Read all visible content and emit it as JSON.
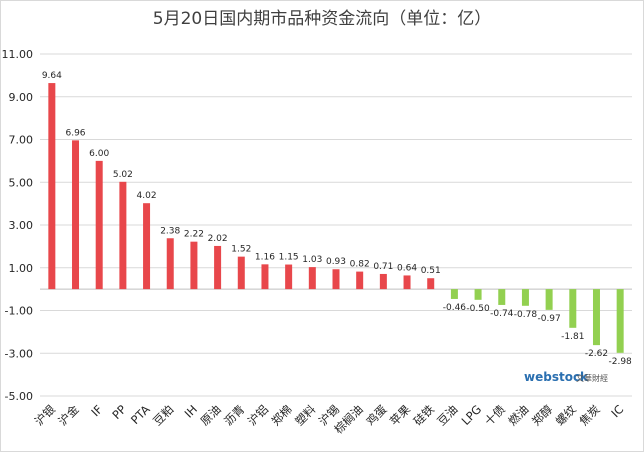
{
  "chart_data": {
    "type": "bar",
    "title": "5月20日国内期市品种资金流向（单位：亿）",
    "categories": [
      "沪银",
      "沪金",
      "IF",
      "PP",
      "PTA",
      "豆粕",
      "IH",
      "原油",
      "沥青",
      "沪铝",
      "郑棉",
      "塑料",
      "沪锡",
      "棕榈油",
      "鸡蛋",
      "苹果",
      "硅铁",
      "豆油",
      "LPG",
      "十债",
      "燃油",
      "郑醇",
      "螺纹",
      "焦炭",
      "IC"
    ],
    "values": [
      9.64,
      6.96,
      6.0,
      5.02,
      4.02,
      2.38,
      2.22,
      2.02,
      1.52,
      1.16,
      1.15,
      1.03,
      0.93,
      0.82,
      0.71,
      0.64,
      0.51,
      -0.46,
      -0.5,
      -0.74,
      -0.78,
      -0.97,
      -1.81,
      -2.62,
      -2.98
    ],
    "data_labels": [
      "9.64",
      "6.96",
      "6.00",
      "5.02",
      "4.02",
      "2.38",
      "2.22",
      "2.02",
      "1.52",
      "1.16",
      "1.15",
      "1.03",
      "0.93",
      "0.82",
      "0.71",
      "0.64",
      "0.51",
      "-0.46",
      "-0.50",
      "-0.74",
      "-0.78",
      "-0.97",
      "-1.81",
      "-2.62",
      "-2.98"
    ],
    "yticks": [
      11,
      9,
      7,
      5,
      3,
      1,
      -1,
      -3,
      -5
    ],
    "ytick_labels": [
      "11.00",
      "9.00",
      "7.00",
      "5.00",
      "3.00",
      "1.00",
      "-1.00",
      "-3.00",
      "-5.00"
    ],
    "ylim": [
      -5,
      11
    ],
    "grid": true,
    "colors": {
      "positive": "#e8474b",
      "negative": "#92d050",
      "grid": "#d9d9d9",
      "axis": "#bfbfbf"
    }
  },
  "watermark": {
    "brand": "webstock",
    "sub": "文華財經"
  }
}
